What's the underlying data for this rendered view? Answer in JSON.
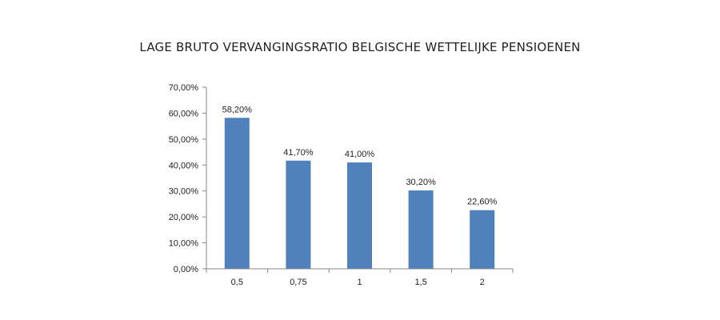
{
  "chart_data": {
    "type": "bar",
    "title": "LAGE BRUTO VERVANGINGSRATIO BELGISCHE WETTELIJKE PENSIOENEN",
    "xlabel": "",
    "ylabel": "",
    "categories": [
      "0,5",
      "0,75",
      "1",
      "1,5",
      "2"
    ],
    "values": [
      58.2,
      41.7,
      41.0,
      30.2,
      22.6
    ],
    "data_labels": [
      "58,20%",
      "41,70%",
      "41,00%",
      "30,20%",
      "22,60%"
    ],
    "ylim": [
      0,
      70
    ],
    "yticks": [
      0,
      10,
      20,
      30,
      40,
      50,
      60,
      70
    ],
    "ytick_labels": [
      "0,00%",
      "10,00%",
      "20,00%",
      "30,00%",
      "40,00%",
      "50,00%",
      "60,00%",
      "70,00%"
    ],
    "bar_color": "#4f81bd",
    "grid": false,
    "legend": "none"
  }
}
